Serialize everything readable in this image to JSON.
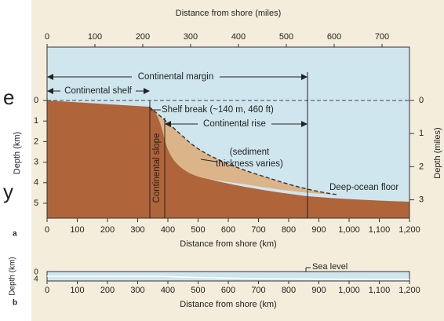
{
  "panel_a": {
    "label": "a",
    "top_axis": {
      "title": "Distance from shore (miles)",
      "ticks": [
        "0",
        "100",
        "200",
        "300",
        "400",
        "500",
        "600",
        "700"
      ]
    },
    "left_axis": {
      "title": "Depth (km)",
      "ticks": [
        "0",
        "1",
        "2",
        "3",
        "4",
        "5"
      ]
    },
    "right_axis": {
      "title": "Depth (miles)",
      "ticks": [
        "0",
        "1",
        "2",
        "3"
      ]
    },
    "bottom_axis": {
      "title": "Distance from shore (km)",
      "ticks": [
        "0",
        "100",
        "200",
        "300",
        "400",
        "500",
        "600",
        "700",
        "800",
        "900",
        "1,000",
        "1,100",
        "1,200"
      ]
    },
    "annotations": {
      "continental_margin": "Continental margin",
      "continental_shelf": "Continental shelf",
      "shelf_break": "Shelf break (~140 m, 460 ft)",
      "continental_rise": "Continental rise",
      "continental_slope": "Continental slope",
      "sediment_1": "(sediment",
      "sediment_2": "thickness varies)",
      "deep_ocean_floor": "Deep-ocean floor"
    }
  },
  "panel_b": {
    "label": "b",
    "left_axis": {
      "title": "Depth (km)",
      "ticks": [
        "0",
        "4"
      ]
    },
    "bottom_axis": {
      "title": "Distance from shore (km)",
      "ticks": [
        "0",
        "100",
        "200",
        "300",
        "400",
        "500",
        "600",
        "700",
        "800",
        "900",
        "1,000",
        "1,100",
        "1,200"
      ]
    },
    "sea_level": "Sea level"
  },
  "fragments": [
    "e",
    "y"
  ]
}
